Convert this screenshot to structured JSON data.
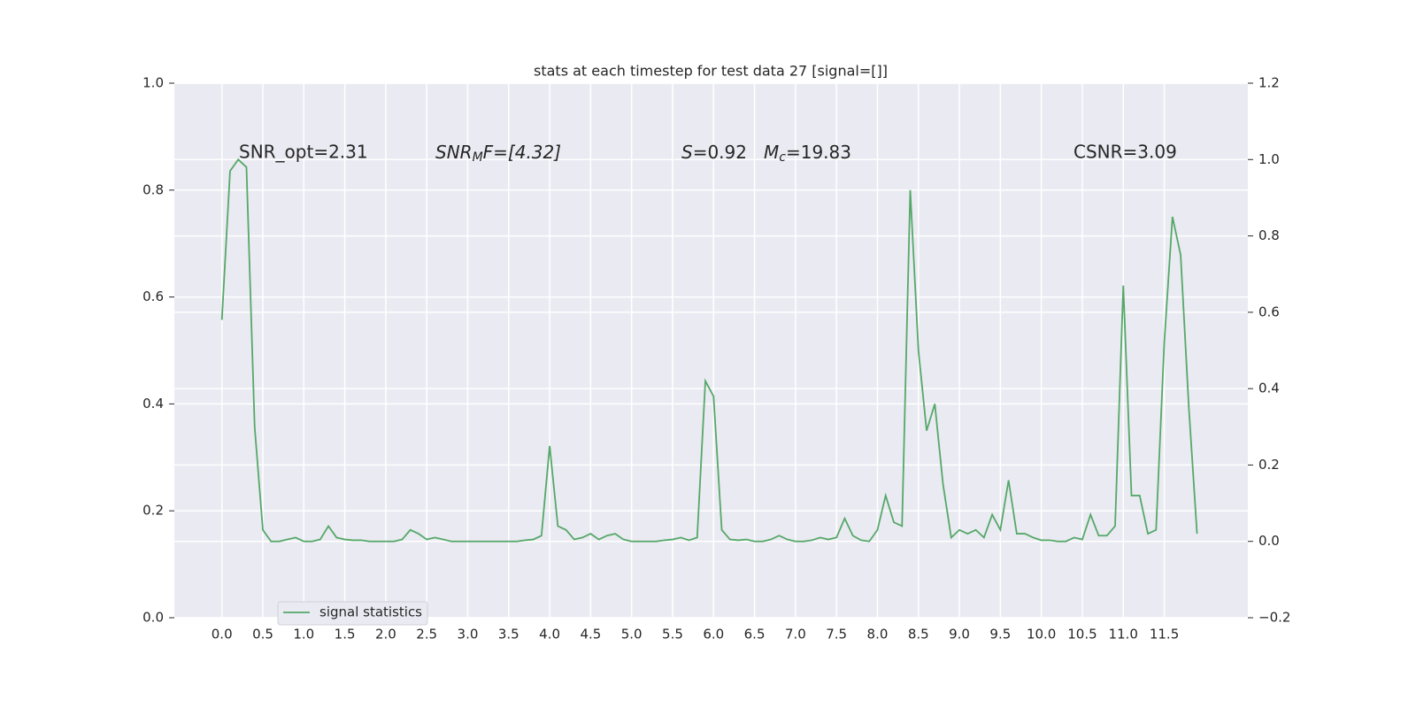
{
  "chart_data": {
    "type": "line",
    "title": "stats at each timestep for test data 27 [signal=[]]",
    "annotations": [
      [
        "SNR_opt=2.31"
      ],
      [
        "SNR",
        "M",
        "F=[4.32]"
      ],
      [
        "S",
        "=0.92"
      ],
      [
        "M",
        "c",
        "=19.83"
      ],
      [
        "CSNR=3.09"
      ]
    ],
    "x": [
      0.0,
      0.1,
      0.2,
      0.3,
      0.4,
      0.5,
      0.6,
      0.7,
      0.8,
      0.9,
      1.0,
      1.1,
      1.2,
      1.3,
      1.4,
      1.5,
      1.6,
      1.7,
      1.8,
      1.9,
      2.0,
      2.1,
      2.2,
      2.3,
      2.4,
      2.5,
      2.6,
      2.7,
      2.8,
      2.9,
      3.0,
      3.1,
      3.2,
      3.3,
      3.4,
      3.5,
      3.6,
      3.7,
      3.8,
      3.9,
      4.0,
      4.1,
      4.2,
      4.3,
      4.4,
      4.5,
      4.6,
      4.7,
      4.8,
      4.9,
      5.0,
      5.1,
      5.2,
      5.3,
      5.4,
      5.5,
      5.6,
      5.7,
      5.8,
      5.9,
      6.0,
      6.1,
      6.2,
      6.3,
      6.4,
      6.5,
      6.6,
      6.7,
      6.8,
      6.9,
      7.0,
      7.1,
      7.2,
      7.3,
      7.4,
      7.5,
      7.6,
      7.7,
      7.8,
      7.9,
      8.0,
      8.1,
      8.2,
      8.3,
      8.4,
      8.5,
      8.6,
      8.7,
      8.8,
      8.9,
      9.0,
      9.1,
      9.2,
      9.3,
      9.4,
      9.5,
      9.6,
      9.7,
      9.8,
      9.9,
      10.0,
      10.1,
      10.2,
      10.3,
      10.4,
      10.5,
      10.6,
      10.7,
      10.8,
      10.9,
      11.0,
      11.1,
      11.2,
      11.3,
      11.4,
      11.5,
      11.6,
      11.7,
      11.8,
      11.9
    ],
    "series": [
      {
        "name": "signal statistics",
        "color": "#55a868",
        "axis": "y2",
        "values": [
          0.58,
          0.97,
          1.0,
          0.98,
          0.3,
          0.03,
          0.0,
          0.0,
          0.005,
          0.01,
          0.0,
          0.0,
          0.005,
          0.04,
          0.01,
          0.005,
          0.003,
          0.003,
          0.0,
          0.0,
          0.0,
          0.0,
          0.005,
          0.03,
          0.02,
          0.005,
          0.01,
          0.005,
          0.0,
          0.0,
          0.0,
          0.0,
          0.0,
          0.0,
          0.0,
          0.0,
          0.0,
          0.003,
          0.005,
          0.015,
          0.25,
          0.04,
          0.03,
          0.005,
          0.01,
          0.02,
          0.005,
          0.015,
          0.02,
          0.005,
          0.0,
          0.0,
          0.0,
          0.0,
          0.003,
          0.005,
          0.01,
          0.003,
          0.01,
          0.42,
          0.38,
          0.03,
          0.005,
          0.003,
          0.005,
          0.0,
          0.0,
          0.005,
          0.015,
          0.005,
          0.0,
          0.0,
          0.003,
          0.01,
          0.005,
          0.01,
          0.06,
          0.015,
          0.003,
          0.0,
          0.03,
          0.12,
          0.05,
          0.04,
          0.92,
          0.5,
          0.29,
          0.36,
          0.15,
          0.01,
          0.03,
          0.02,
          0.03,
          0.01,
          0.07,
          0.03,
          0.16,
          0.02,
          0.02,
          0.01,
          0.003,
          0.003,
          0.0,
          0.0,
          0.01,
          0.005,
          0.07,
          0.015,
          0.015,
          0.04,
          0.67,
          0.12,
          0.12,
          0.02,
          0.03,
          0.52,
          0.85,
          0.75,
          0.35,
          0.02
        ]
      }
    ],
    "xlim": [
      -0.58,
      12.52
    ],
    "xticks": [
      {
        "value": 0,
        "label": "0.0"
      },
      {
        "value": 0.5,
        "label": "0.5"
      },
      {
        "value": 1,
        "label": "1.0"
      },
      {
        "value": 1.5,
        "label": "1.5"
      },
      {
        "value": 2,
        "label": "2.0"
      },
      {
        "value": 2.5,
        "label": "2.5"
      },
      {
        "value": 3,
        "label": "3.0"
      },
      {
        "value": 3.5,
        "label": "3.5"
      },
      {
        "value": 4,
        "label": "4.0"
      },
      {
        "value": 4.5,
        "label": "4.5"
      },
      {
        "value": 5,
        "label": "5.0"
      },
      {
        "value": 5.5,
        "label": "5.5"
      },
      {
        "value": 6,
        "label": "6.0"
      },
      {
        "value": 6.5,
        "label": "6.5"
      },
      {
        "value": 7,
        "label": "7.0"
      },
      {
        "value": 7.5,
        "label": "7.5"
      },
      {
        "value": 8,
        "label": "8.0"
      },
      {
        "value": 8.5,
        "label": "8.5"
      },
      {
        "value": 9,
        "label": "9.0"
      },
      {
        "value": 9.5,
        "label": "9.5"
      },
      {
        "value": 10,
        "label": "10.0"
      },
      {
        "value": 10.5,
        "label": "10.5"
      },
      {
        "value": 11,
        "label": "11.0"
      },
      {
        "value": 11.5,
        "label": "11.5"
      }
    ],
    "ylim": [
      0,
      1
    ],
    "yticks": [
      {
        "value": 0,
        "label": "0.0"
      },
      {
        "value": 0.2,
        "label": "0.2"
      },
      {
        "value": 0.4,
        "label": "0.4"
      },
      {
        "value": 0.6,
        "label": "0.6"
      },
      {
        "value": 0.8,
        "label": "0.8"
      },
      {
        "value": 1,
        "label": "1.0"
      }
    ],
    "y2lim": [
      -0.2,
      1.2
    ],
    "y2ticks": [
      {
        "value": -0.2,
        "label": "−0.2"
      },
      {
        "value": 0,
        "label": "0.0"
      },
      {
        "value": 0.2,
        "label": "0.2"
      },
      {
        "value": 0.4,
        "label": "0.4"
      },
      {
        "value": 0.6,
        "label": "0.6"
      },
      {
        "value": 0.8,
        "label": "0.8"
      },
      {
        "value": 1,
        "label": "1.0"
      },
      {
        "value": 1.2,
        "label": "1.2"
      }
    ],
    "grid": true,
    "legend": "lower left"
  }
}
